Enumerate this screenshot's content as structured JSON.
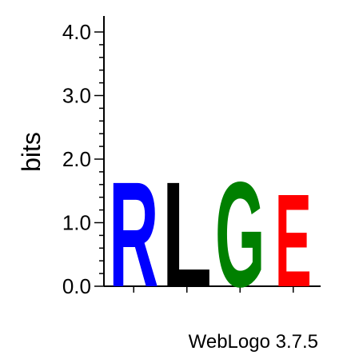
{
  "chart_data": {
    "type": "sequence-logo",
    "ylabel": "bits",
    "ylim": [
      0.0,
      4.0
    ],
    "y_ticks": [
      "0.0",
      "1.0",
      "2.0",
      "3.0",
      "4.0"
    ],
    "positions": [
      {
        "letter": "R",
        "bits": 1.7,
        "color": "#0000FF"
      },
      {
        "letter": "L",
        "bits": 1.7,
        "color": "#000000"
      },
      {
        "letter": "G",
        "bits": 1.7,
        "color": "#008000"
      },
      {
        "letter": "E",
        "bits": 1.5,
        "color": "#FF0000"
      }
    ],
    "footer": "WebLogo 3.7.5"
  }
}
